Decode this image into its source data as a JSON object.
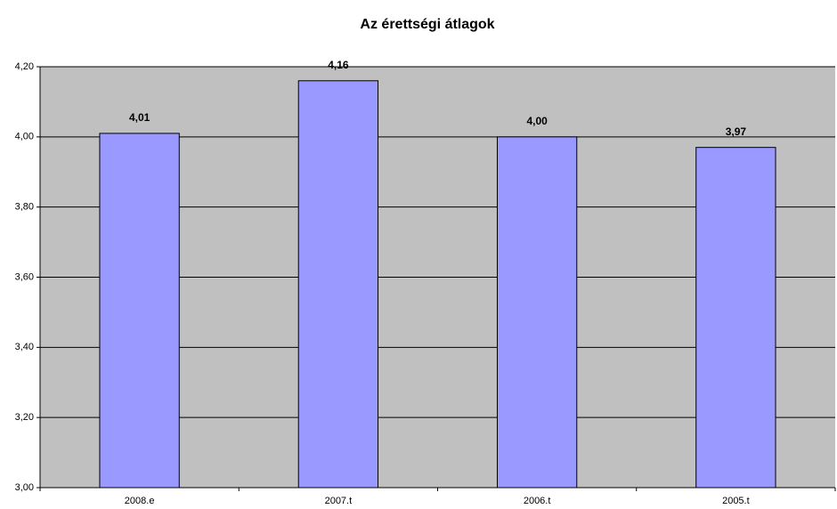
{
  "chart_data": {
    "type": "bar",
    "title": "Az érettségi átlagok",
    "categories": [
      "2008.e",
      "2007.t",
      "2006.t",
      "2005.t"
    ],
    "values": [
      4.01,
      4.16,
      4.0,
      3.97
    ],
    "value_labels": [
      "4,01",
      "4,16",
      "4,00",
      "3,97"
    ],
    "color": "#9999ff",
    "ylim": [
      3.0,
      4.2
    ],
    "yticks": [
      {
        "value": 3.0,
        "label": "3,00"
      },
      {
        "value": 3.2,
        "label": "3,20"
      },
      {
        "value": 3.4,
        "label": "3,40"
      },
      {
        "value": 3.6,
        "label": "3,60"
      },
      {
        "value": 3.8,
        "label": "3,80"
      },
      {
        "value": 4.0,
        "label": "4,00"
      },
      {
        "value": 4.2,
        "label": "4,20"
      }
    ],
    "grid": true
  }
}
